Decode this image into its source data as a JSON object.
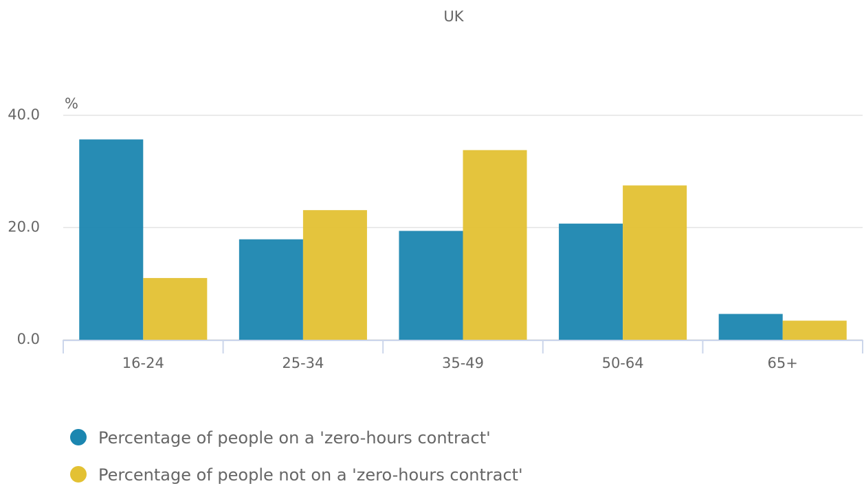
{
  "chart_data": {
    "type": "bar",
    "title": "UK",
    "y_label": "%",
    "categories": [
      "16-24",
      "25-34",
      "35-49",
      "50-64",
      "65+"
    ],
    "series": [
      {
        "name": "Percentage of people on a 'zero-hours contract'",
        "color": "#1b86b0",
        "values": [
          35.7,
          17.9,
          19.4,
          20.7,
          4.6
        ]
      },
      {
        "name": "Percentage of people not on a 'zero-hours contract'",
        "color": "#e3c133",
        "values": [
          11.0,
          23.1,
          33.8,
          27.5,
          3.4
        ]
      }
    ],
    "ylim": [
      0,
      40
    ],
    "yticks": [
      {
        "value": 0,
        "label": "0.0"
      },
      {
        "value": 20,
        "label": "20.0"
      },
      {
        "value": 40,
        "label": "40.0"
      }
    ],
    "grid": true
  }
}
